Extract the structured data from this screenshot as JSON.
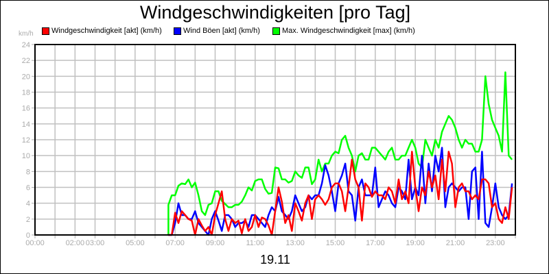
{
  "chart_data": {
    "type": "line",
    "title": "Windgeschwindigkeiten [pro Tag]",
    "xlabel": "19.11",
    "ylabel": "km/h",
    "ylim": [
      0,
      24
    ],
    "yticks": [
      0,
      2,
      4,
      6,
      8,
      10,
      12,
      14,
      16,
      18,
      20,
      22,
      24
    ],
    "xticks": [
      "00:00",
      "02:00",
      "03:00",
      "05:00",
      "07:00",
      "09:00",
      "11:00",
      "13:00",
      "15:00",
      "17:00",
      "19:00",
      "21:00",
      "23:00"
    ],
    "xtick_hours": [
      0,
      2,
      3,
      5,
      7,
      9,
      11,
      13,
      15,
      17,
      19,
      21,
      23
    ],
    "grid": true,
    "legend_position": "top",
    "x_start_hour": 6.6667,
    "x_step_minutes": 10,
    "series": [
      {
        "name": "Windgeschwindigkeit [akt] (km/h)",
        "color": "#ff0000",
        "values": [
          0,
          0,
          2.8,
          1.5,
          3.0,
          2.5,
          2.0,
          1.8,
          0.0,
          2.0,
          1.2,
          0.5,
          1.0,
          0.0,
          2.5,
          4.0,
          5.5,
          2.0,
          0.5,
          2.0,
          1.5,
          1.8,
          0.2,
          2.0,
          0.5,
          1.0,
          2.5,
          1.0,
          2.2,
          2.0,
          1.2,
          0.0,
          3.0,
          6.0,
          4.2,
          1.5,
          2.5,
          0.5,
          4.0,
          3.0,
          1.8,
          4.0,
          5.0,
          2.0,
          4.5,
          5.0,
          4.5,
          3.8,
          4.5,
          6.0,
          6.5,
          6.5,
          5.5,
          3.0,
          6.0,
          9.5,
          7.0,
          6.0,
          1.8,
          6.5,
          6.0,
          4.8,
          5.5,
          5.0,
          5.0,
          4.5,
          6.0,
          5.5,
          4.0,
          7.0,
          4.5,
          5.5,
          4.0,
          10.5,
          6.0,
          3.0,
          6.0,
          5.0,
          8.0,
          6.0,
          7.5,
          4.5,
          9.5,
          5.5,
          10.5,
          9.0,
          3.5,
          6.0,
          6.5,
          5.5,
          5.5,
          4.5,
          5.0,
          4.5,
          7.0,
          7.0,
          6.5,
          3.5,
          4.0,
          2.0,
          1.5,
          3.5,
          2.0,
          6.0,
          8.5
        ]
      },
      {
        "name": "Wind Böen [akt] (km/h)",
        "color": "#0000ff",
        "values": [
          0,
          0,
          1.5,
          4.0,
          2.5,
          2.5,
          2.0,
          2.0,
          3.0,
          1.5,
          1.0,
          0.5,
          0.0,
          2.0,
          3.0,
          1.8,
          0.5,
          2.5,
          2.5,
          2.0,
          1.0,
          1.5,
          1.5,
          1.8,
          1.0,
          2.5,
          2.5,
          2.0,
          1.5,
          1.0,
          2.5,
          3.5,
          3.0,
          4.8,
          3.0,
          2.5,
          2.0,
          3.0,
          5.0,
          4.0,
          3.0,
          3.5,
          5.0,
          4.5,
          5.0,
          5.0,
          6.5,
          8.8,
          7.5,
          5.5,
          3.0,
          6.5,
          7.5,
          9.0,
          5.5,
          5.0,
          1.8,
          6.0,
          7.0,
          5.0,
          5.0,
          5.0,
          8.5,
          3.5,
          4.5,
          5.5,
          5.0,
          4.0,
          3.5,
          6.0,
          5.5,
          4.5,
          9.5,
          4.5,
          6.0,
          5.0,
          10.0,
          4.0,
          9.0,
          5.5,
          10.0,
          8.0,
          11.0,
          3.5,
          6.0,
          6.5,
          6.0,
          5.5,
          6.0,
          6.0,
          2.0,
          8.0,
          8.5,
          2.0,
          10.5,
          1.5,
          1.0,
          3.5,
          6.5,
          3.5,
          2.5,
          2.0,
          2.5,
          6.5,
          4.0,
          1.0
        ]
      },
      {
        "name": "Max. Windgeschwindigkeit [max] (km/h)",
        "color": "#00ff00",
        "values": [
          3.8,
          5.0,
          5.0,
          6.2,
          6.5,
          6.4,
          7.0,
          6.0,
          6.6,
          5.0,
          3.0,
          2.5,
          3.8,
          4.0,
          5.5,
          5.5,
          4.3,
          3.9,
          3.5,
          3.5,
          3.8,
          3.8,
          4.2,
          5.0,
          6.0,
          5.6,
          6.8,
          7.0,
          7.0,
          5.8,
          5.2,
          5.3,
          8.5,
          8.4,
          7.0,
          7.0,
          6.6,
          6.8,
          8.0,
          7.5,
          7.2,
          8.5,
          8.5,
          6.4,
          7.0,
          9.5,
          8.0,
          9.0,
          9.0,
          10.0,
          10.5,
          10.3,
          12.0,
          12.5,
          11.0,
          10.0,
          8.0,
          10.0,
          10.3,
          9.5,
          9.5,
          11.0,
          11.0,
          10.5,
          10.0,
          9.5,
          10.5,
          11.0,
          9.5,
          9.5,
          10.0,
          10.0,
          11.0,
          12.0,
          11.0,
          9.0,
          8.5,
          12.0,
          11.0,
          10.0,
          12.0,
          11.0,
          13.0,
          14.0,
          15.0,
          14.5,
          13.5,
          12.0,
          11.0,
          12.0,
          11.5,
          11.5,
          10.5,
          10.5,
          12.0,
          20.0,
          16.5,
          14.5,
          13.5,
          12.5,
          10.5,
          20.5,
          10.0,
          9.5,
          12.3
        ]
      }
    ]
  },
  "legend": [
    {
      "label": "Windgeschwindigkeit [akt] (km/h)",
      "color": "#ff0000"
    },
    {
      "label": "Wind Böen [akt] (km/h)",
      "color": "#0000ff"
    },
    {
      "label": "Max. Windgeschwindigkeit [max] (km/h)",
      "color": "#00ff00"
    }
  ],
  "unit_label": "km/h"
}
